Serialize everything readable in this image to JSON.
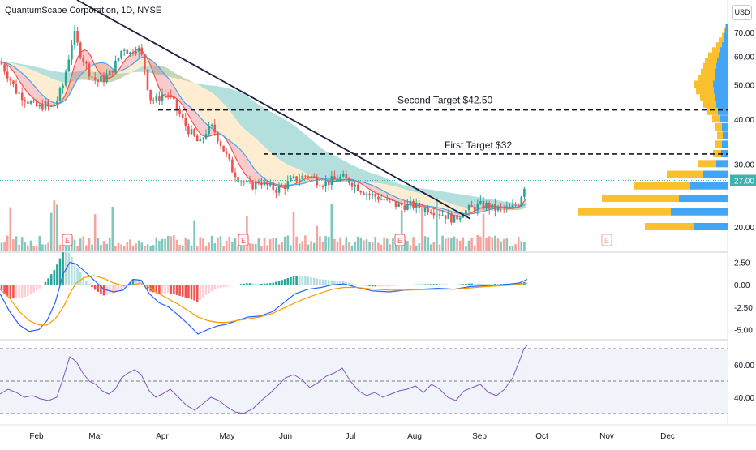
{
  "chart_title": "QuantumScape Corporation, 1D, NYSE",
  "currency_label": "USD",
  "colors": {
    "up": "#26a69a",
    "down": "#ef5350",
    "up_volume": "#7fc8bf",
    "down_volume": "#f4a39d",
    "trendline": "#1e2140",
    "profile_blue": "#42a5f5",
    "profile_yellow": "#fbc02d",
    "price_badge": "#3cb4ac",
    "macd_line": "#2962ff",
    "signal_line": "#ff9800"
  },
  "annotations": {
    "second_target": "Second Target $42.50",
    "first_target": "First Target $32",
    "last_price": "27.00"
  },
  "earnings_marker": "E",
  "chart_data": [
    {
      "type": "candlestick",
      "x_labels": [
        "Feb",
        "Mar",
        "Apr",
        "May",
        "Jun",
        "Jul",
        "Aug",
        "Sep",
        "Oct",
        "Nov",
        "Dec"
      ],
      "y_ticks": [
        "70.00",
        "60.00",
        "50.00",
        "40.00",
        "30.00",
        "20.00"
      ],
      "y_range": [
        17,
        75
      ],
      "y_scale": "log",
      "price_path": [
        [
          0,
          58
        ],
        [
          10,
          53
        ],
        [
          20,
          48
        ],
        [
          30,
          46
        ],
        [
          40,
          44
        ],
        [
          48,
          43
        ],
        [
          55,
          44
        ],
        [
          62,
          43
        ],
        [
          70,
          45
        ],
        [
          78,
          50
        ],
        [
          85,
          60
        ],
        [
          91,
          70
        ],
        [
          97,
          63
        ],
        [
          104,
          58
        ],
        [
          112,
          53
        ],
        [
          120,
          51
        ],
        [
          128,
          52
        ],
        [
          136,
          54
        ],
        [
          144,
          58
        ],
        [
          152,
          64
        ],
        [
          160,
          61
        ],
        [
          167,
          64
        ],
        [
          173,
          62
        ],
        [
          179,
          55
        ],
        [
          184,
          46
        ],
        [
          192,
          45
        ],
        [
          200,
          47
        ],
        [
          208,
          47
        ],
        [
          215,
          44
        ],
        [
          222,
          41
        ],
        [
          230,
          38
        ],
        [
          238,
          36
        ],
        [
          246,
          34
        ],
        [
          254,
          37
        ],
        [
          262,
          38
        ],
        [
          270,
          35
        ],
        [
          278,
          32
        ],
        [
          286,
          29
        ],
        [
          294,
          27.5
        ],
        [
          302,
          26.5
        ],
        [
          310,
          26
        ],
        [
          320,
          27
        ],
        [
          330,
          26
        ],
        [
          340,
          25.5
        ],
        [
          350,
          26
        ],
        [
          360,
          27
        ],
        [
          370,
          27.5
        ],
        [
          380,
          28
        ],
        [
          390,
          27
        ],
        [
          400,
          26.5
        ],
        [
          410,
          27
        ],
        [
          420,
          27.5
        ],
        [
          430,
          27
        ],
        [
          440,
          26
        ],
        [
          450,
          25
        ],
        [
          460,
          24.5
        ],
        [
          470,
          24
        ],
        [
          480,
          23.5
        ],
        [
          490,
          23
        ],
        [
          500,
          23
        ],
        [
          510,
          23
        ],
        [
          520,
          22.5
        ],
        [
          530,
          22.5
        ],
        [
          540,
          22
        ],
        [
          550,
          21.5
        ],
        [
          560,
          21
        ],
        [
          570,
          22
        ],
        [
          580,
          22.5
        ],
        [
          590,
          23
        ],
        [
          600,
          23
        ],
        [
          610,
          22.5
        ],
        [
          620,
          22.5
        ],
        [
          630,
          22.5
        ],
        [
          640,
          23.5
        ],
        [
          646,
          26
        ],
        [
          650,
          27
        ]
      ],
      "trendline": [
        [
          95,
          0
        ],
        [
          580,
          270
        ]
      ],
      "levels": [
        {
          "label": "Second Target $42.50",
          "value": 42.5
        },
        {
          "label": "First Target $32",
          "value": 32
        },
        {
          "label": "last price",
          "value": 27
        }
      ],
      "earnings_events": [
        "Mar",
        "May",
        "Aug",
        "Nov"
      ],
      "volume_profile": [
        {
          "price": 72,
          "yellow": 1,
          "blue": 2
        },
        {
          "price": 70,
          "yellow": 2,
          "blue": 3
        },
        {
          "price": 68,
          "yellow": 3,
          "blue": 4
        },
        {
          "price": 66,
          "yellow": 5,
          "blue": 5
        },
        {
          "price": 64,
          "yellow": 7,
          "blue": 7
        },
        {
          "price": 62,
          "yellow": 10,
          "blue": 9
        },
        {
          "price": 60,
          "yellow": 13,
          "blue": 11
        },
        {
          "price": 58,
          "yellow": 15,
          "blue": 13
        },
        {
          "price": 56,
          "yellow": 16,
          "blue": 14
        },
        {
          "price": 54,
          "yellow": 18,
          "blue": 15
        },
        {
          "price": 52,
          "yellow": 20,
          "blue": 16
        },
        {
          "price": 50,
          "yellow": 24,
          "blue": 18
        },
        {
          "price": 48,
          "yellow": 22,
          "blue": 17
        },
        {
          "price": 46,
          "yellow": 18,
          "blue": 16
        },
        {
          "price": 44,
          "yellow": 16,
          "blue": 14
        },
        {
          "price": 42,
          "yellow": 14,
          "blue": 12
        },
        {
          "price": 40,
          "yellow": 10,
          "blue": 9
        },
        {
          "price": 38,
          "yellow": 8,
          "blue": 7
        },
        {
          "price": 36,
          "yellow": 7,
          "blue": 6
        },
        {
          "price": 34,
          "yellow": 8,
          "blue": 7
        },
        {
          "price": 32,
          "yellow": 10,
          "blue": 8
        },
        {
          "price": 30,
          "yellow": 22,
          "blue": 14
        },
        {
          "price": 28,
          "yellow": 45,
          "blue": 30
        },
        {
          "price": 26,
          "yellow": 70,
          "blue": 46
        },
        {
          "price": 24,
          "yellow": 95,
          "blue": 60
        },
        {
          "price": 22,
          "yellow": 115,
          "blue": 70
        },
        {
          "price": 20,
          "yellow": 60,
          "blue": 42
        }
      ]
    },
    {
      "type": "macd",
      "y_ticks": [
        "2.50",
        "0.00",
        "-2.50",
        "-5.00"
      ],
      "y_range": [
        -5.5,
        3
      ],
      "macd": [
        [
          0,
          -1
        ],
        [
          12,
          -3
        ],
        [
          24,
          -4.5
        ],
        [
          36,
          -5.2
        ],
        [
          48,
          -5
        ],
        [
          58,
          -4
        ],
        [
          68,
          -2
        ],
        [
          78,
          1.2
        ],
        [
          86,
          2.5
        ],
        [
          94,
          2.3
        ],
        [
          104,
          1.5
        ],
        [
          116,
          0.5
        ],
        [
          128,
          -0.5
        ],
        [
          140,
          -0.8
        ],
        [
          152,
          -0.6
        ],
        [
          164,
          0.6
        ],
        [
          174,
          0.5
        ],
        [
          184,
          -1
        ],
        [
          196,
          -2
        ],
        [
          208,
          -2.5
        ],
        [
          220,
          -3.4
        ],
        [
          232,
          -4.4
        ],
        [
          244,
          -5.5
        ],
        [
          256,
          -5
        ],
        [
          268,
          -4.6
        ],
        [
          280,
          -4.4
        ],
        [
          292,
          -4
        ],
        [
          306,
          -3.6
        ],
        [
          320,
          -3.5
        ],
        [
          336,
          -3
        ],
        [
          350,
          -2
        ],
        [
          364,
          -1
        ],
        [
          380,
          -0.5
        ],
        [
          396,
          -0.3
        ],
        [
          410,
          0
        ],
        [
          424,
          0.1
        ],
        [
          440,
          -0.3
        ],
        [
          460,
          -0.7
        ],
        [
          480,
          -0.8
        ],
        [
          500,
          -0.6
        ],
        [
          520,
          -0.5
        ],
        [
          540,
          -0.4
        ],
        [
          560,
          -0.5
        ],
        [
          580,
          -0.2
        ],
        [
          600,
          -0.1
        ],
        [
          620,
          0
        ],
        [
          640,
          0.2
        ],
        [
          650,
          0.6
        ]
      ],
      "signal": [
        [
          0,
          -0.5
        ],
        [
          12,
          -1.5
        ],
        [
          24,
          -3
        ],
        [
          36,
          -4
        ],
        [
          48,
          -4.5
        ],
        [
          58,
          -4.5
        ],
        [
          68,
          -3.8
        ],
        [
          78,
          -2.5
        ],
        [
          86,
          -1
        ],
        [
          94,
          0.2
        ],
        [
          104,
          0.8
        ],
        [
          116,
          1
        ],
        [
          128,
          0.7
        ],
        [
          140,
          0.2
        ],
        [
          152,
          -0.1
        ],
        [
          164,
          0
        ],
        [
          174,
          0.2
        ],
        [
          184,
          -0.3
        ],
        [
          196,
          -1
        ],
        [
          208,
          -1.6
        ],
        [
          220,
          -2.2
        ],
        [
          232,
          -2.9
        ],
        [
          244,
          -3.6
        ],
        [
          256,
          -4
        ],
        [
          268,
          -4.2
        ],
        [
          280,
          -4.2
        ],
        [
          292,
          -4
        ],
        [
          306,
          -3.8
        ],
        [
          320,
          -3.6
        ],
        [
          336,
          -3.2
        ],
        [
          350,
          -2.6
        ],
        [
          364,
          -2
        ],
        [
          380,
          -1.4
        ],
        [
          396,
          -0.9
        ],
        [
          410,
          -0.5
        ],
        [
          424,
          -0.3
        ],
        [
          440,
          -0.3
        ],
        [
          460,
          -0.5
        ],
        [
          480,
          -0.6
        ],
        [
          500,
          -0.6
        ],
        [
          520,
          -0.55
        ],
        [
          540,
          -0.5
        ],
        [
          560,
          -0.5
        ],
        [
          580,
          -0.35
        ],
        [
          600,
          -0.2
        ],
        [
          620,
          -0.1
        ],
        [
          640,
          0.05
        ],
        [
          650,
          0.2
        ]
      ]
    },
    {
      "type": "line",
      "name": "RSI",
      "y_ticks": [
        "60.00",
        "40.00"
      ],
      "y_range": [
        25,
        75
      ],
      "bands": [
        70,
        50,
        30
      ],
      "values": [
        [
          0,
          42
        ],
        [
          10,
          45
        ],
        [
          20,
          43
        ],
        [
          30,
          40
        ],
        [
          40,
          41
        ],
        [
          50,
          39
        ],
        [
          60,
          38
        ],
        [
          70,
          40
        ],
        [
          78,
          52
        ],
        [
          86,
          65
        ],
        [
          94,
          62
        ],
        [
          102,
          55
        ],
        [
          110,
          50
        ],
        [
          118,
          48
        ],
        [
          126,
          44
        ],
        [
          134,
          42
        ],
        [
          142,
          45
        ],
        [
          150,
          52
        ],
        [
          158,
          55
        ],
        [
          166,
          57
        ],
        [
          174,
          54
        ],
        [
          184,
          44
        ],
        [
          192,
          40
        ],
        [
          200,
          42
        ],
        [
          210,
          45
        ],
        [
          220,
          40
        ],
        [
          230,
          35
        ],
        [
          240,
          32
        ],
        [
          250,
          36
        ],
        [
          260,
          40
        ],
        [
          270,
          38
        ],
        [
          280,
          34
        ],
        [
          290,
          31
        ],
        [
          300,
          30
        ],
        [
          312,
          33
        ],
        [
          322,
          38
        ],
        [
          332,
          42
        ],
        [
          342,
          47
        ],
        [
          352,
          52
        ],
        [
          362,
          54
        ],
        [
          372,
          51
        ],
        [
          382,
          46
        ],
        [
          392,
          49
        ],
        [
          402,
          53
        ],
        [
          412,
          55
        ],
        [
          422,
          58
        ],
        [
          432,
          50
        ],
        [
          442,
          44
        ],
        [
          452,
          41
        ],
        [
          462,
          43
        ],
        [
          472,
          40
        ],
        [
          482,
          42
        ],
        [
          492,
          44
        ],
        [
          502,
          45
        ],
        [
          512,
          47
        ],
        [
          522,
          43
        ],
        [
          532,
          48
        ],
        [
          542,
          45
        ],
        [
          552,
          40
        ],
        [
          562,
          38
        ],
        [
          572,
          44
        ],
        [
          582,
          46
        ],
        [
          592,
          48
        ],
        [
          602,
          43
        ],
        [
          612,
          41
        ],
        [
          622,
          45
        ],
        [
          632,
          52
        ],
        [
          640,
          62
        ],
        [
          646,
          70
        ],
        [
          650,
          72
        ]
      ]
    }
  ]
}
